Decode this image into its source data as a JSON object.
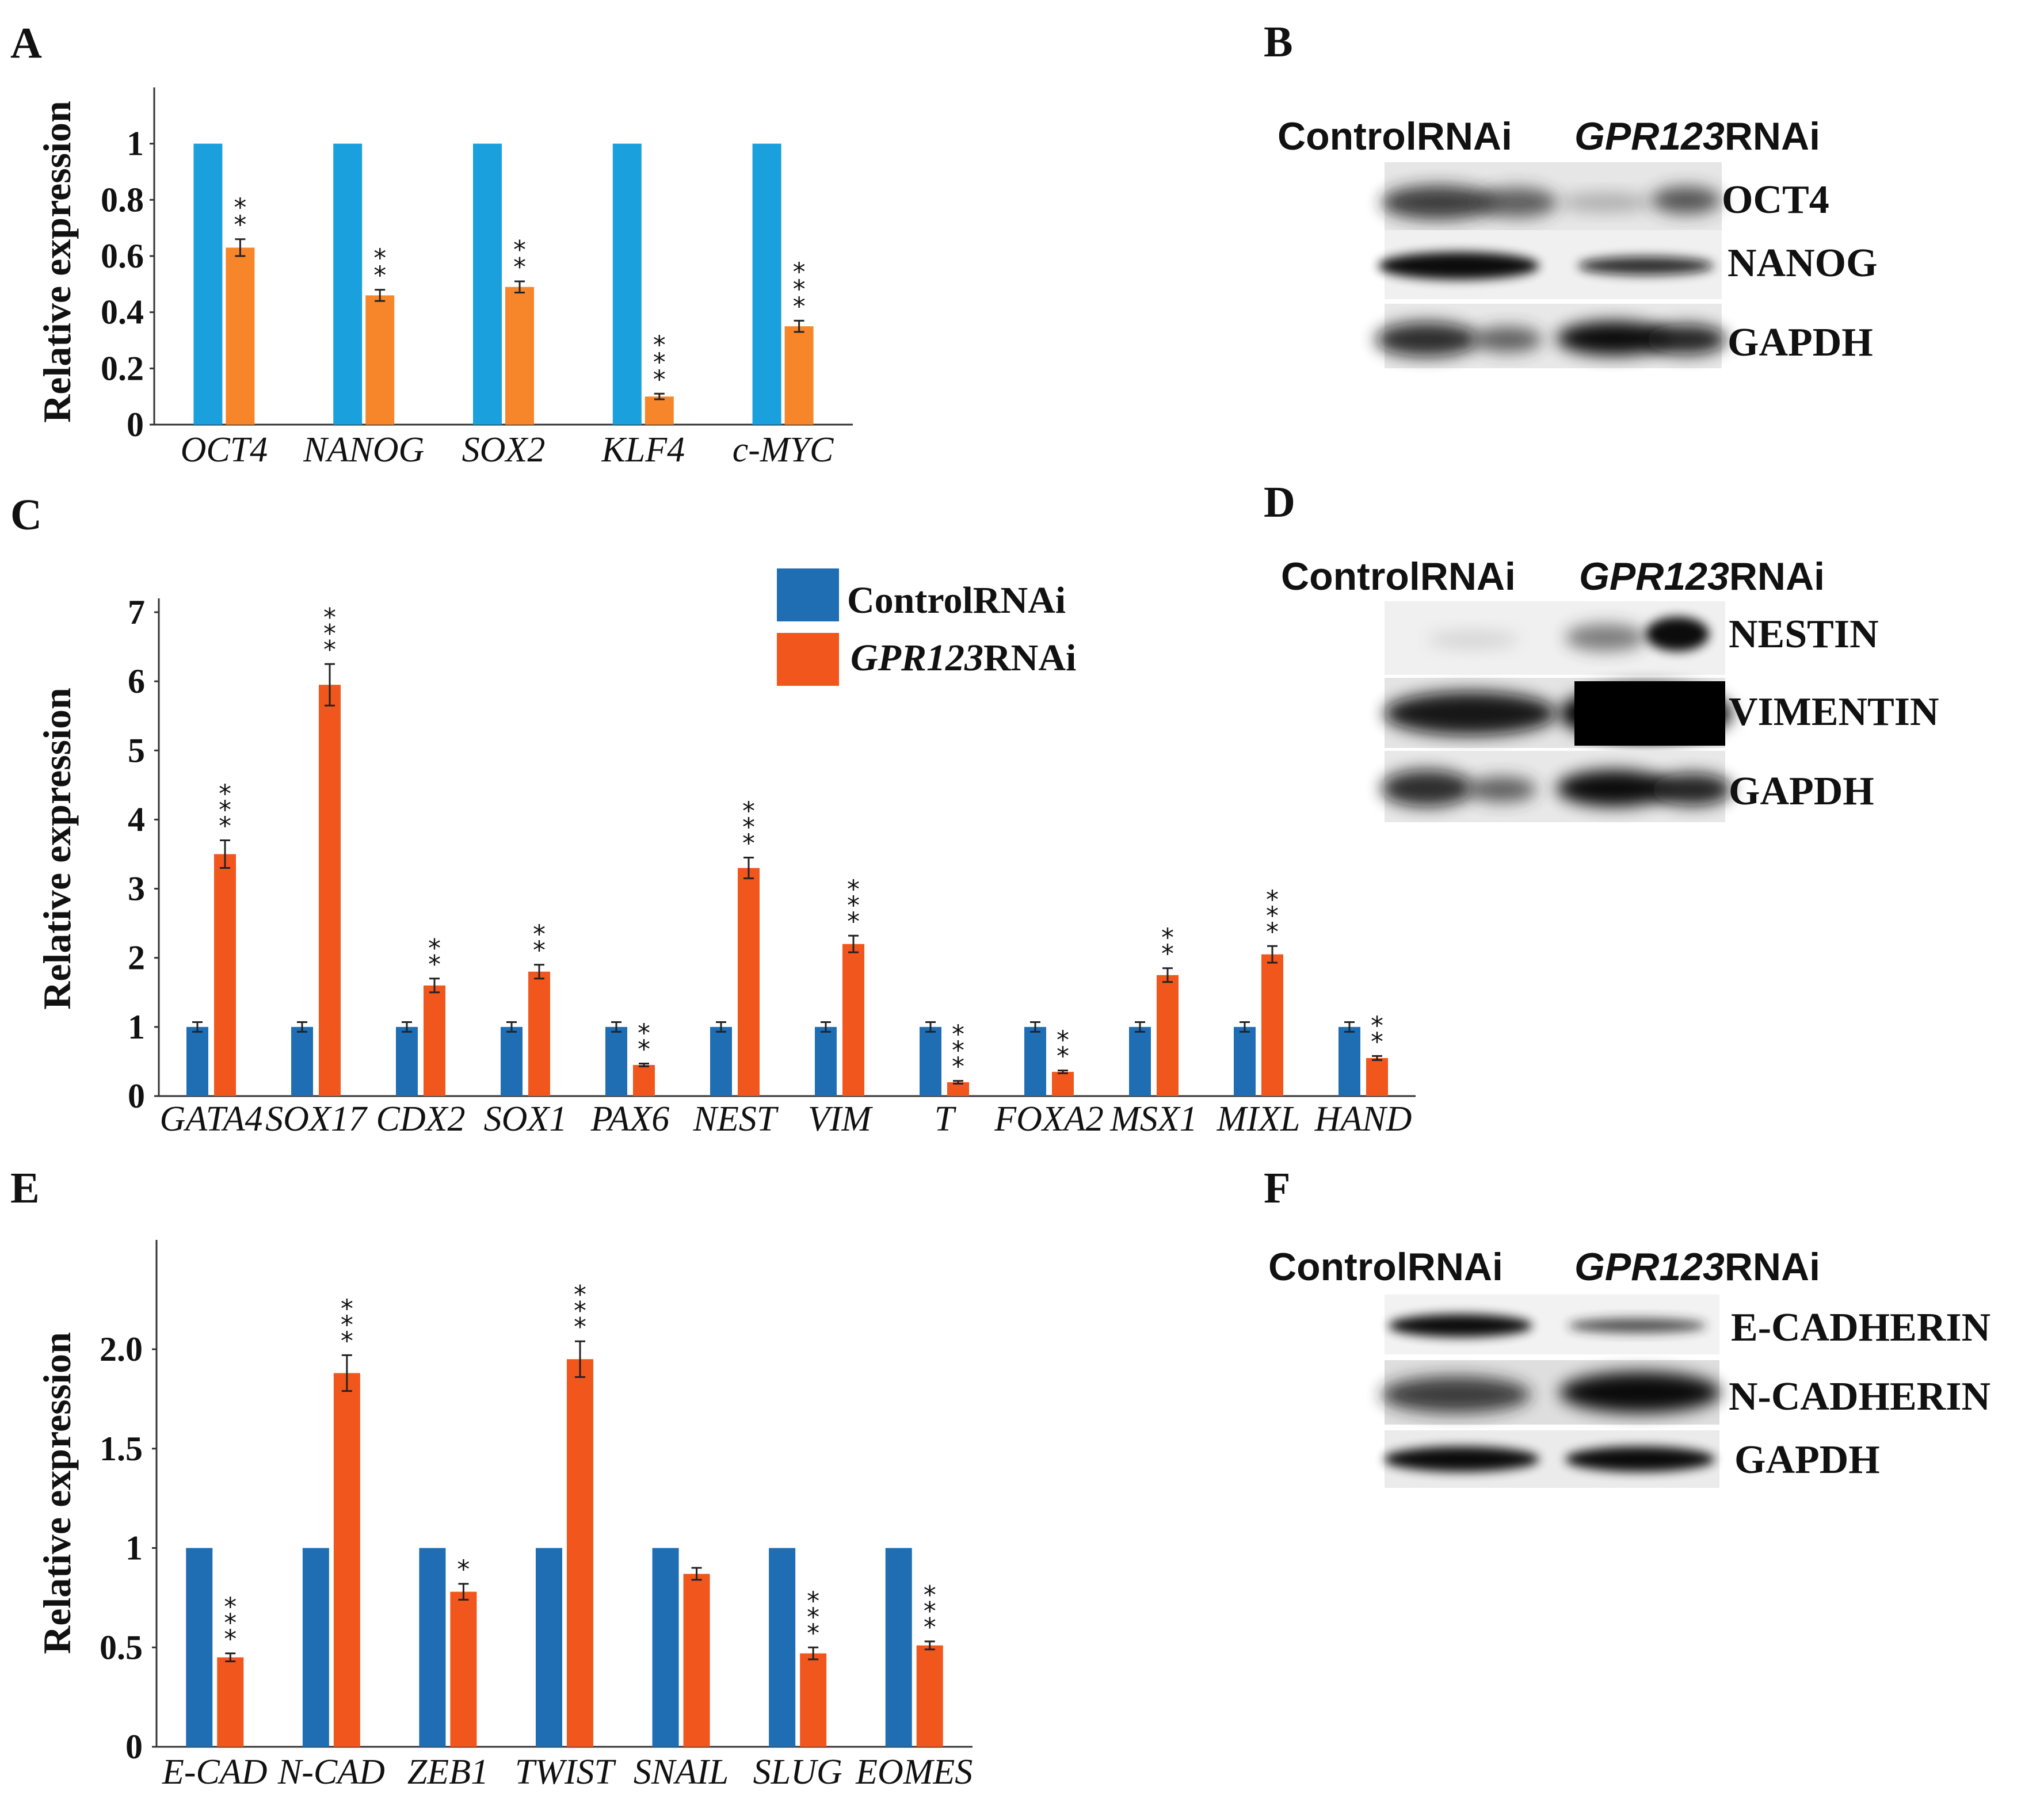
{
  "panels": {
    "A": "A",
    "B": "B",
    "C": "C",
    "D": "D",
    "E": "E",
    "F": "F"
  },
  "colors": {
    "control_A": "#1aa0dc",
    "control_CE": "#1f6eb4",
    "rnai_A": "#f7862a",
    "rnai_CE": "#f1561c"
  },
  "legend": {
    "control": "ControlRNAi",
    "rnai_gene": "GPR123",
    "rnai_suffix": "RNAi"
  },
  "chart_data": [
    {
      "id": "A",
      "type": "bar",
      "ylabel": "Relative expression",
      "ylim": [
        0,
        1.2
      ],
      "yticks": [
        0,
        0.2,
        0.4,
        0.6,
        0.8,
        1
      ],
      "ytick_labels": [
        "0",
        "0.2",
        "0.4",
        "0.6",
        "0.8",
        "1"
      ],
      "categories": [
        "OCT4",
        "NANOG",
        "SOX2",
        "KLF4",
        "c-MYC"
      ],
      "series": [
        {
          "name": "ControlRNAi",
          "values": [
            1,
            1,
            1,
            1,
            1
          ],
          "errors": [
            0,
            0,
            0,
            0,
            0
          ],
          "sig": [
            "",
            "",
            "",
            "",
            ""
          ]
        },
        {
          "name": "GPR123RNAi",
          "values": [
            0.63,
            0.46,
            0.49,
            0.1,
            0.35
          ],
          "errors": [
            0.03,
            0.02,
            0.02,
            0.01,
            0.02
          ],
          "sig": [
            "**",
            "**",
            "**",
            "***",
            "***"
          ]
        }
      ]
    },
    {
      "id": "C",
      "type": "bar",
      "ylabel": "Relative expression",
      "ylim": [
        0,
        7.2
      ],
      "yticks": [
        0,
        1,
        2,
        3,
        4,
        5,
        6,
        7
      ],
      "ytick_labels": [
        "0",
        "1",
        "2",
        "3",
        "4",
        "5",
        "6",
        "7"
      ],
      "categories": [
        "GATA4",
        "SOX17",
        "CDX2",
        "SOX1",
        "PAX6",
        "NEST",
        "VIM",
        "T",
        "FOXA2",
        "MSX1",
        "MIXL",
        "HAND"
      ],
      "series": [
        {
          "name": "ControlRNAi",
          "values": [
            1,
            1,
            1,
            1,
            1,
            1,
            1,
            1,
            1,
            1,
            1,
            1
          ],
          "errors": [
            0.07,
            0.07,
            0.07,
            0.07,
            0.07,
            0.07,
            0.07,
            0.07,
            0.07,
            0.07,
            0.07,
            0.07
          ],
          "sig": [
            "",
            "",
            "",
            "",
            "",
            "",
            "",
            "",
            "",
            "",
            "",
            ""
          ]
        },
        {
          "name": "GPR123RNAi",
          "values": [
            3.5,
            5.95,
            1.6,
            1.8,
            0.45,
            3.3,
            2.2,
            0.2,
            0.35,
            1.75,
            2.05,
            0.55
          ],
          "errors": [
            0.2,
            0.3,
            0.1,
            0.1,
            0.02,
            0.15,
            0.12,
            0.02,
            0.02,
            0.1,
            0.12,
            0.03
          ],
          "sig": [
            "***",
            "***",
            "**",
            "**",
            "**",
            "***",
            "***",
            "***",
            "**",
            "**",
            "***",
            "**"
          ]
        }
      ]
    },
    {
      "id": "E",
      "type": "bar",
      "ylabel": "Relative expression",
      "ylim": [
        0,
        2.55
      ],
      "yticks": [
        0,
        0.5,
        1,
        1.5,
        2
      ],
      "ytick_labels": [
        "0",
        "0.5",
        "1",
        "1.5",
        "2.0"
      ],
      "categories": [
        "E-CAD",
        "N-CAD",
        "ZEB1",
        "TWIST",
        "SNAIL",
        "SLUG",
        "EOMES"
      ],
      "series": [
        {
          "name": "ControlRNAi",
          "values": [
            1,
            1,
            1,
            1,
            1,
            1,
            1
          ],
          "errors": [
            0,
            0,
            0,
            0,
            0,
            0,
            0
          ],
          "sig": [
            "",
            "",
            "",
            "",
            "",
            "",
            ""
          ]
        },
        {
          "name": "GPR123RNAi",
          "values": [
            0.45,
            1.88,
            0.78,
            1.95,
            0.87,
            0.47,
            0.51
          ],
          "errors": [
            0.02,
            0.09,
            0.04,
            0.09,
            0.03,
            0.03,
            0.02
          ],
          "sig": [
            "***",
            "***",
            "*",
            "***",
            "",
            "***",
            "***"
          ]
        }
      ]
    }
  ],
  "blots": [
    {
      "id": "B",
      "proteins": [
        "OCT4",
        "NANOG",
        "GAPDH"
      ]
    },
    {
      "id": "D",
      "proteins": [
        "NESTIN",
        "VIMENTIN",
        "GAPDH"
      ]
    },
    {
      "id": "F",
      "proteins": [
        "E-CADHERIN",
        "N-CADHERIN",
        "GAPDH"
      ]
    }
  ]
}
